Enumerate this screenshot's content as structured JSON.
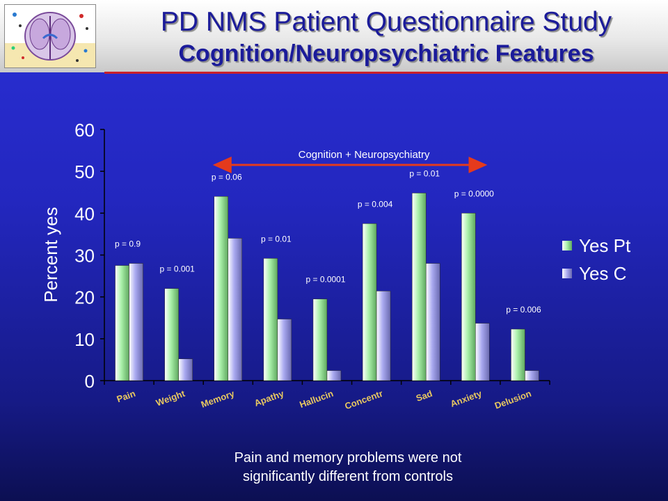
{
  "slide": {
    "title": "PD NMS Patient Questionnaire Study",
    "subtitle": "Cognition/Neuropsychiatric Features",
    "caption_line1": "Pain and memory problems were not",
    "caption_line2": "significantly different from controls",
    "logo_icon": "brain-scan-icon"
  },
  "colors": {
    "header_rule": "#c8202a",
    "title_text": "#1b1b9a",
    "series_pt": "#a9f0a9",
    "series_c": "#a9a9f0",
    "annotation_arrow": "#e53a1c"
  },
  "chart_data": {
    "type": "bar",
    "title": "",
    "xlabel": "",
    "ylabel": "Percent yes",
    "ylim": [
      0,
      60
    ],
    "yticks": [
      0,
      10,
      20,
      30,
      40,
      50,
      60
    ],
    "categories": [
      "Pain",
      "Weight",
      "Memory",
      "Apathy",
      "Hallucin",
      "Concentr",
      "Sad",
      "Anxiety",
      "Delusion"
    ],
    "series": [
      {
        "name": "Yes Pt",
        "color": "#a9f0a9",
        "values": [
          27.5,
          22,
          44,
          29.2,
          19.5,
          37.5,
          44.8,
          40,
          12.3
        ]
      },
      {
        "name": "Yes C",
        "color": "#a9a9f0",
        "values": [
          28,
          5.2,
          34,
          14.7,
          2.4,
          21.4,
          28,
          13.7,
          2.4
        ]
      }
    ],
    "p_values": [
      "p = 0.9",
      "p = 0.001",
      "p = 0.06",
      "p = 0.01",
      "p = 0.0001",
      "p = 0.004",
      "p = 0.01",
      "p = 0.0000",
      "p = 0.006"
    ],
    "annotation": {
      "text": "Cognition + Neuropsychiatry",
      "from_category": "Memory",
      "to_category": "Anxiety"
    },
    "legend_position": "right",
    "grid": false
  }
}
